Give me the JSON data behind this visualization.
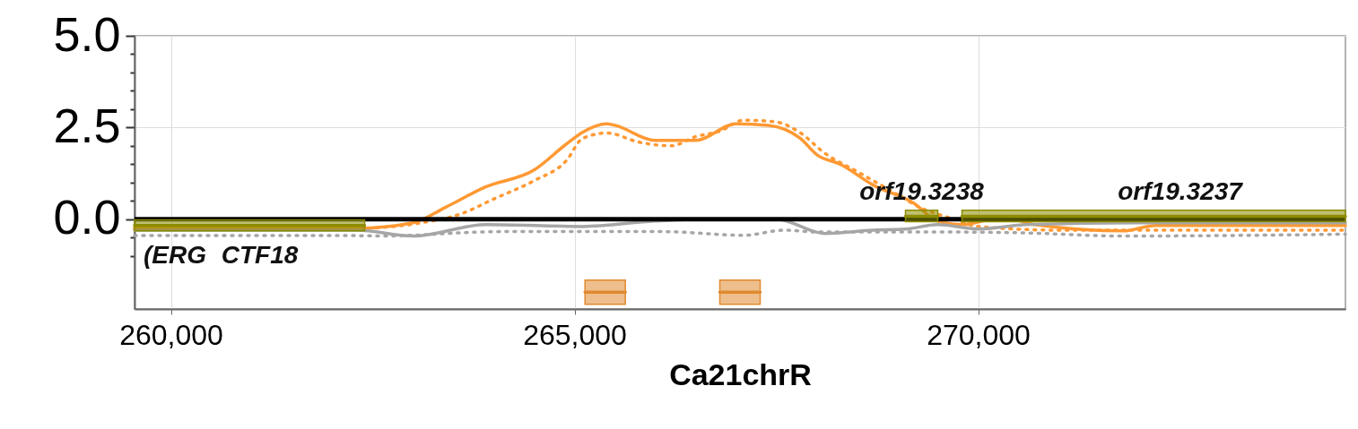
{
  "chart_data": {
    "type": "line",
    "xlabel": "Ca21chrR",
    "xlim": [
      259550,
      274550
    ],
    "xticks": [
      {
        "value": 260000,
        "label": "260,000"
      },
      {
        "value": 265000,
        "label": "265,000"
      },
      {
        "value": 270000,
        "label": "270,000"
      }
    ],
    "ylim": [
      -2.45,
      5
    ],
    "yticks": [
      {
        "value": -1,
        "label": null
      },
      {
        "value": -0.5,
        "label": null
      },
      {
        "value": 0,
        "label": "0.0"
      },
      {
        "value": 0.5,
        "label": null
      },
      {
        "value": 1,
        "label": null
      },
      {
        "value": 1.5,
        "label": null
      },
      {
        "value": 2,
        "label": null
      },
      {
        "value": 2.5,
        "label": "2.5"
      },
      {
        "value": 3,
        "label": null
      },
      {
        "value": 3.5,
        "label": null
      },
      {
        "value": 4,
        "label": null
      },
      {
        "value": 4.5,
        "label": null
      },
      {
        "value": 5,
        "label": "5.0"
      }
    ],
    "grid": true,
    "series": [
      {
        "color": "#ff9933",
        "line_style": "solid",
        "x": [
          259550,
          262300,
          263000,
          263400,
          263900,
          264500,
          264900,
          265100,
          265400,
          265500,
          266000,
          266500,
          267000,
          267400,
          267800,
          268000,
          268300,
          268700,
          269200,
          269500,
          269800,
          270300,
          270700,
          271800,
          272200,
          274550
        ],
        "values": [
          -0.25,
          -0.25,
          -0.1,
          0.32,
          0.88,
          1.34,
          2.05,
          2.37,
          2.6,
          2.56,
          2.15,
          2.15,
          2.6,
          2.56,
          2.2,
          1.76,
          1.49,
          0.93,
          0.44,
          -0.05,
          -0.15,
          0.05,
          -0.15,
          -0.32,
          -0.17,
          -0.17
        ]
      },
      {
        "color": "#ff9933",
        "line_style": "dotted",
        "x": [
          259550,
          262300,
          263100,
          263600,
          264000,
          264500,
          264900,
          265100,
          265400,
          265800,
          266200,
          266500,
          266800,
          267100,
          267500,
          267800,
          268100,
          268500,
          268900,
          269300,
          269700,
          270000,
          271000,
          272000,
          274550
        ],
        "values": [
          -0.25,
          -0.25,
          -0.1,
          0.15,
          0.55,
          1.05,
          1.6,
          2.2,
          2.35,
          2.1,
          2.0,
          2.25,
          2.4,
          2.7,
          2.65,
          2.35,
          1.8,
          1.3,
          0.8,
          0.3,
          0.0,
          -0.2,
          -0.3,
          -0.3,
          -0.3
        ]
      },
      {
        "color": "#a6a6a6",
        "line_style": "solid",
        "x": [
          259550,
          262300,
          263000,
          263900,
          265100,
          266000,
          266600,
          267500,
          268100,
          268700,
          269100,
          269500,
          270000,
          270600,
          272000,
          274550
        ],
        "values": [
          -0.3,
          -0.3,
          -0.46,
          -0.15,
          -0.2,
          -0.05,
          0,
          0,
          -0.39,
          -0.3,
          -0.27,
          -0.15,
          -0.27,
          -0.15,
          -0.1,
          -0.1
        ]
      },
      {
        "color": "#a6a6a6",
        "line_style": "dotted",
        "x": [
          259550,
          262300,
          262600,
          264100,
          266100,
          267100,
          267600,
          268000,
          269500,
          270500,
          271800,
          274550
        ],
        "values": [
          -0.45,
          -0.45,
          -0.46,
          -0.34,
          -0.34,
          -0.44,
          -0.3,
          -0.35,
          -0.35,
          -0.37,
          -0.46,
          -0.41
        ]
      },
      {
        "color": "#8c8c00",
        "line_style": "solid",
        "x": [
          259550,
          262400,
          262500,
          269100,
          269500,
          269600,
          269800,
          274550
        ],
        "values": [
          -0.17,
          -0.17,
          null,
          0.08,
          0.08,
          null,
          0.08,
          0.08
        ],
        "lower": [
          -0.32,
          -0.32,
          null,
          -0.07,
          -0.07,
          null,
          -0.07,
          -0.07
        ],
        "upper": [
          -0.02,
          -0.02,
          null,
          0.24,
          0.24,
          null,
          0.24,
          0.24
        ]
      },
      {
        "color": "#e08a30",
        "line_style": "solid",
        "x": [
          265130,
          265630,
          266200,
          266800,
          267300
        ],
        "values": [
          -1.99,
          -1.99,
          null,
          -1.99,
          -1.99
        ],
        "lower": [
          -2.32,
          -2.32,
          null,
          -2.32,
          -2.32
        ],
        "upper": [
          -1.66,
          -1.66,
          null,
          -1.66,
          -1.66
        ]
      }
    ],
    "ref_lines": [
      {
        "axis": "y",
        "value": 0,
        "color": "#000000"
      }
    ],
    "annotations": [
      {
        "text": "orf19.3238",
        "x": 269300,
        "y": 0.24
      },
      {
        "text": "orf19.3237",
        "x": 272500,
        "y": 0.24
      },
      {
        "text": "(ERG",
        "x": 260050,
        "y": -0.32
      },
      {
        "text": "CTF18",
        "x": 261100,
        "y": -0.32
      }
    ]
  }
}
